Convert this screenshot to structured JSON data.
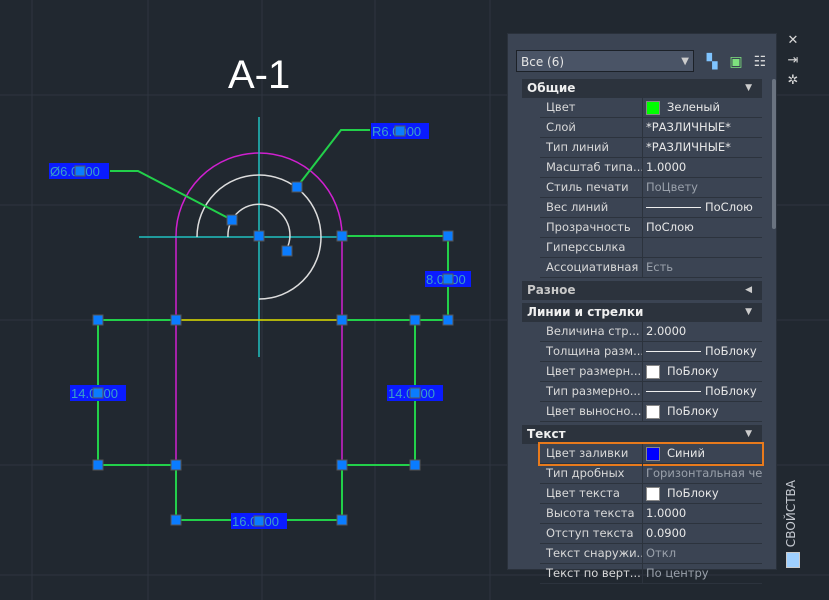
{
  "drawing": {
    "title": "А-1",
    "dimensions": {
      "dia": "Ø6.0000",
      "rad": "R6.0000",
      "right": "8.0000",
      "left": "14.0000",
      "right_v": "14.0000",
      "bottom": "16.0000"
    }
  },
  "palette": {
    "selector": "Все (6)",
    "toolbar": [
      "quick-select-icon",
      "select-objects-icon",
      "toggle-pickadd-icon"
    ],
    "side_title": "СВОЙСТВА",
    "categories": [
      {
        "label": "Общие",
        "rows": [
          {
            "name": "Цвет",
            "value": "Зеленый",
            "swatch": "#00ff00"
          },
          {
            "name": "Слой",
            "value": "*РАЗЛИЧНЫЕ*"
          },
          {
            "name": "Тип линий",
            "value": "*РАЗЛИЧНЫЕ*"
          },
          {
            "name": "Масштаб типа...",
            "value": "1.0000"
          },
          {
            "name": "Стиль печати",
            "value": "ПоЦвету"
          },
          {
            "name": "Вес линий",
            "value": "ПоСлою"
          },
          {
            "name": "Прозрачность",
            "value": "ПоСлою"
          },
          {
            "name": "Гиперссылка",
            "value": ""
          },
          {
            "name": "Ассоциативная",
            "value": "Есть"
          }
        ]
      },
      {
        "label": "Разное"
      },
      {
        "label": "Линии и стрелки",
        "rows": [
          {
            "name": "Величина стр...",
            "value": "2.0000"
          },
          {
            "name": "Толщина разм...",
            "value": "ПоБлоку"
          },
          {
            "name": "Цвет размерн...",
            "value": "ПоБлоку",
            "swatch": "#ffffff"
          },
          {
            "name": "Тип размерно...",
            "value": "ПоБлоку"
          },
          {
            "name": "Цвет выносно...",
            "value": "ПоБлоку",
            "swatch": "#ffffff"
          }
        ]
      },
      {
        "label": "Текст",
        "rows": [
          {
            "name": "Цвет заливки",
            "value": "Синий",
            "swatch": "#0000ff"
          },
          {
            "name": "Тип дробных",
            "value": "Горизонтальная че..."
          },
          {
            "name": "Цвет текста",
            "value": "ПоБлоку",
            "swatch": "#ffffff"
          },
          {
            "name": "Высота текста",
            "value": "1.0000"
          },
          {
            "name": "Отступ текста",
            "value": "0.0900"
          },
          {
            "name": "Текст снаружи...",
            "value": "Откл"
          },
          {
            "name": "Текст по верт...",
            "value": "По центру"
          }
        ]
      }
    ]
  },
  "colors": {
    "highlight": "#e87a1c",
    "dim_fill": "#0a1bff",
    "dim_line": "#22d04a",
    "outline": "#d020d0"
  }
}
